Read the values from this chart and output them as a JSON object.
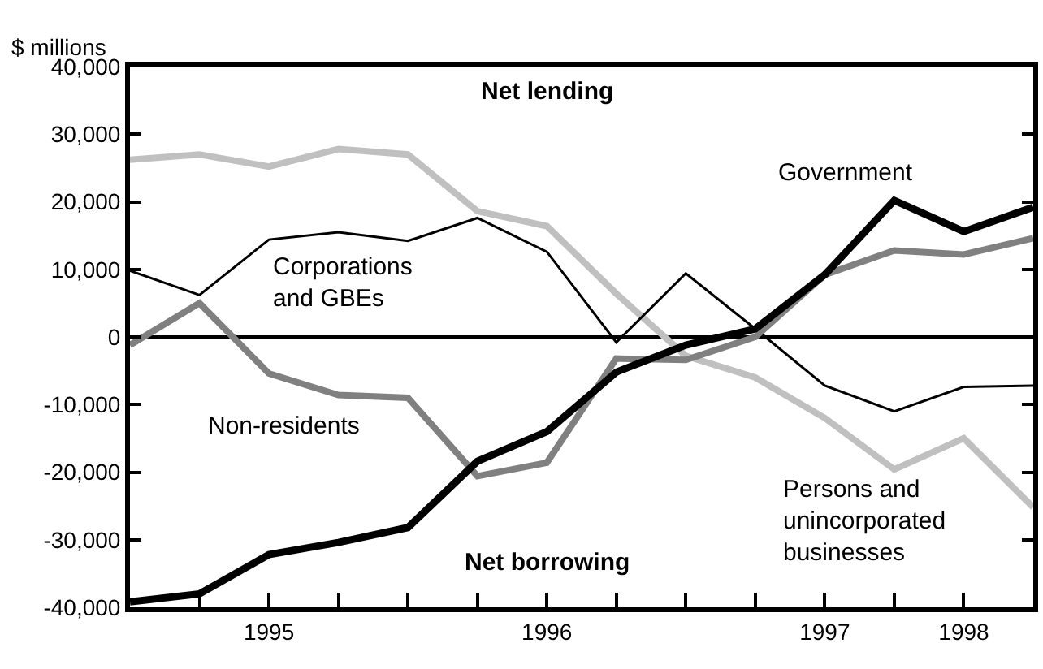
{
  "chart_data": {
    "type": "line",
    "ylabel": "$ millions",
    "x": [
      1994.5,
      1994.75,
      1995.0,
      1995.25,
      1995.5,
      1995.75,
      1996.0,
      1996.25,
      1996.5,
      1996.75,
      1997.0,
      1997.25,
      1997.5,
      1997.75
    ],
    "xlim": [
      1994.5,
      1997.75
    ],
    "xticks": [
      {
        "value": 1994.75,
        "label": null
      },
      {
        "value": 1995.0,
        "label": "1995"
      },
      {
        "value": 1995.25,
        "label": null
      },
      {
        "value": 1995.5,
        "label": null
      },
      {
        "value": 1995.75,
        "label": null
      },
      {
        "value": 1996.0,
        "label": "1996"
      },
      {
        "value": 1996.25,
        "label": null
      },
      {
        "value": 1996.5,
        "label": null
      },
      {
        "value": 1996.75,
        "label": null
      },
      {
        "value": 1997.0,
        "label": "1997"
      },
      {
        "value": 1997.25,
        "label": null
      },
      {
        "value": 1997.5,
        "label": "1998"
      }
    ],
    "ylim": [
      -40000,
      40000
    ],
    "yticks": [
      {
        "value": -40000,
        "label": "-40,000"
      },
      {
        "value": -30000,
        "label": "-30,000"
      },
      {
        "value": -20000,
        "label": "-20,000"
      },
      {
        "value": -10000,
        "label": "-10,000"
      },
      {
        "value": 0,
        "label": "0"
      },
      {
        "value": 10000,
        "label": "10,000"
      },
      {
        "value": 20000,
        "label": "20,000"
      },
      {
        "value": 30000,
        "label": "30,000"
      },
      {
        "value": 40000,
        "label": "40,000"
      }
    ],
    "series": [
      {
        "name": "Persons and\nunincorporated\nbusinesses",
        "color": "#c0c0c0",
        "values": [
          26200,
          27000,
          25200,
          27800,
          27000,
          18600,
          16400,
          6400,
          -2800,
          -6000,
          -12000,
          -19600,
          -15000,
          -25200
        ]
      },
      {
        "name": "Corporations\nand GBEs",
        "color": "#000000",
        "values": [
          9800,
          6200,
          14400,
          15500,
          14200,
          17600,
          12600,
          -800,
          9400,
          1200,
          -7200,
          -11000,
          -7400,
          -7200
        ]
      },
      {
        "name": "Non-residents",
        "color": "#808080",
        "values": [
          -1200,
          5000,
          -5400,
          -8600,
          -9000,
          -20600,
          -18600,
          -3200,
          -3400,
          0,
          9200,
          12800,
          12200,
          14600
        ]
      },
      {
        "name": "Government",
        "color": "#000000",
        "values": [
          -39200,
          -38000,
          -32200,
          -30400,
          -28200,
          -18400,
          -14000,
          -5200,
          -1200,
          1200,
          9200,
          20200,
          15600,
          19200
        ]
      }
    ],
    "ref_lines": [
      {
        "axis": "y",
        "value": 0,
        "color": "#000000"
      }
    ],
    "annotations": [
      "Net lending",
      "Net borrowing"
    ],
    "grid": false,
    "legend": false,
    "marker": "none",
    "line_style": "solid"
  }
}
